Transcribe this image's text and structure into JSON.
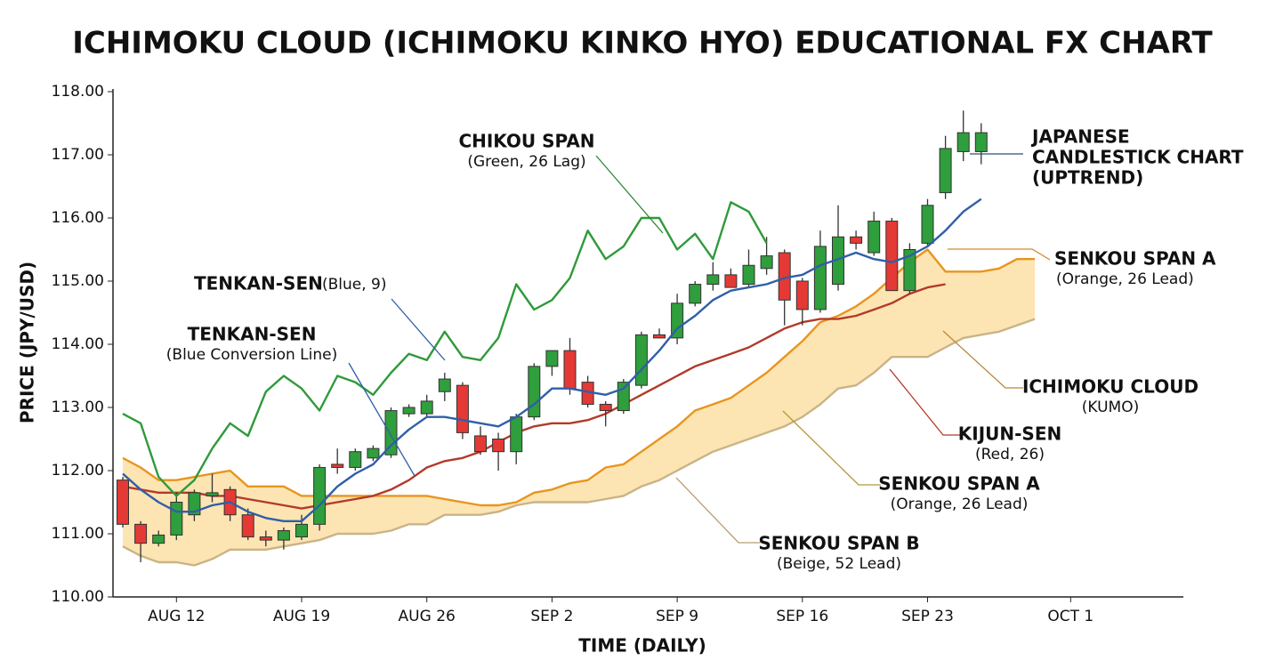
{
  "chart_data": {
    "type": "candlestick",
    "title": "ICHIMOKU CLOUD (ICHIMOKU KINKO HYO) EDUCATIONAL FX CHART",
    "x_label": "TIME (DAILY)",
    "y_label": "PRICE (JPY/USD)",
    "categories": [
      null,
      null,
      null,
      "AUG 12",
      null,
      null,
      null,
      null,
      null,
      null,
      "AUG 19",
      null,
      null,
      null,
      null,
      null,
      null,
      "AUG 26",
      null,
      null,
      null,
      null,
      null,
      null,
      "SEP 2",
      null,
      null,
      null,
      null,
      null,
      null,
      "SEP 9",
      null,
      null,
      null,
      null,
      null,
      null,
      "SEP 16",
      null,
      null,
      null,
      null,
      null,
      null,
      "SEP 23",
      null,
      null,
      null,
      null,
      null,
      null,
      null,
      "OCT 1",
      null,
      null,
      null,
      null,
      null,
      null
    ],
    "ylim": [
      110,
      118
    ],
    "yticks": [
      {
        "value": 110,
        "label": "110.00"
      },
      {
        "value": 111,
        "label": "111.00"
      },
      {
        "value": 112,
        "label": "112.00"
      },
      {
        "value": 113,
        "label": "113.00"
      },
      {
        "value": 114,
        "label": "114.00"
      },
      {
        "value": 115,
        "label": "115.00"
      },
      {
        "value": 116,
        "label": "116.00"
      },
      {
        "value": 117,
        "label": "117.00"
      },
      {
        "value": 118,
        "label": "118.00"
      }
    ],
    "up_color": "#2f9e3c",
    "down_color": "#e53935",
    "cloud_color": "#fde4b3",
    "candles": {
      "open": [
        111.85,
        111.15,
        110.85,
        110.98,
        111.3,
        111.6,
        111.7,
        111.3,
        110.95,
        110.9,
        110.95,
        111.15,
        112.1,
        112.05,
        112.2,
        112.25,
        112.9,
        112.9,
        113.25,
        113.35,
        112.55,
        112.5,
        112.3,
        112.85,
        113.65,
        113.9,
        113.4,
        113.05,
        112.95,
        113.35,
        114.15,
        114.1,
        114.65,
        114.95,
        115.1,
        114.95,
        115.2,
        115.45,
        115.0,
        114.55,
        114.95,
        115.7,
        115.45,
        115.95,
        114.85,
        115.6,
        116.4,
        117.05,
        117.05
      ],
      "high": [
        111.9,
        111.2,
        111.05,
        111.65,
        111.7,
        111.95,
        111.75,
        111.4,
        111.05,
        111.1,
        111.3,
        112.1,
        112.35,
        112.35,
        112.4,
        113.0,
        113.05,
        113.2,
        113.55,
        113.4,
        112.7,
        112.6,
        112.9,
        113.7,
        113.9,
        114.1,
        113.5,
        113.1,
        113.45,
        114.2,
        114.25,
        114.8,
        115.0,
        115.3,
        115.2,
        115.5,
        115.7,
        115.5,
        115.05,
        115.8,
        116.2,
        115.8,
        116.1,
        116.0,
        115.6,
        116.3,
        117.3,
        117.7,
        117.5
      ],
      "low": [
        111.1,
        110.55,
        110.8,
        110.9,
        111.2,
        111.5,
        111.2,
        110.9,
        110.8,
        110.75,
        110.9,
        111.05,
        111.95,
        112.0,
        112.15,
        112.2,
        112.85,
        112.85,
        113.1,
        112.5,
        112.25,
        112.0,
        112.1,
        112.8,
        113.5,
        113.2,
        113.0,
        112.7,
        112.9,
        113.3,
        114.1,
        114.0,
        114.6,
        114.85,
        114.9,
        114.9,
        115.1,
        114.3,
        114.3,
        114.5,
        114.85,
        115.5,
        115.4,
        114.85,
        114.8,
        115.55,
        116.3,
        116.9,
        116.85
      ],
      "close": [
        111.15,
        110.85,
        110.98,
        111.5,
        111.65,
        111.65,
        111.3,
        110.95,
        110.9,
        111.05,
        111.15,
        112.05,
        112.05,
        112.3,
        112.35,
        112.95,
        113.0,
        113.1,
        113.45,
        112.6,
        112.3,
        112.3,
        112.85,
        113.65,
        113.9,
        113.3,
        113.05,
        112.95,
        113.4,
        114.15,
        114.1,
        114.65,
        114.95,
        115.1,
        114.9,
        115.25,
        115.4,
        114.7,
        114.55,
        115.55,
        115.7,
        115.6,
        115.95,
        114.85,
        115.5,
        116.2,
        117.1,
        117.35,
        117.35
      ]
    },
    "series": [
      {
        "color": "#c9b487",
        "values": [
          110.8,
          110.65,
          110.55,
          110.55,
          110.5,
          110.6,
          110.75,
          110.75,
          110.75,
          110.8,
          110.85,
          110.9,
          111.0,
          111.0,
          111.0,
          111.05,
          111.15,
          111.15,
          111.3,
          111.3,
          111.3,
          111.35,
          111.45,
          111.5,
          111.5,
          111.5,
          111.5,
          111.55,
          111.6,
          111.75,
          111.85,
          112.0,
          112.15,
          112.3,
          112.4,
          112.5,
          112.6,
          112.7,
          112.85,
          113.05,
          113.3,
          113.35,
          113.55,
          113.8,
          113.8,
          113.8,
          113.95,
          114.1,
          114.15,
          114.2,
          114.3,
          114.4,
          null,
          null,
          null,
          null,
          null,
          null,
          null,
          null
        ]
      },
      {
        "color": "#e8951e",
        "values": [
          112.2,
          112.05,
          111.85,
          111.85,
          111.9,
          111.95,
          112.0,
          111.75,
          111.75,
          111.75,
          111.6,
          111.6,
          111.6,
          111.6,
          111.6,
          111.6,
          111.6,
          111.6,
          111.55,
          111.5,
          111.45,
          111.45,
          111.5,
          111.65,
          111.7,
          111.8,
          111.85,
          112.05,
          112.1,
          112.3,
          112.5,
          112.7,
          112.95,
          113.05,
          113.15,
          113.35,
          113.55,
          113.8,
          114.05,
          114.35,
          114.45,
          114.6,
          114.8,
          115.05,
          115.3,
          115.5,
          115.15,
          115.15,
          115.15,
          115.2,
          115.35,
          115.35,
          null,
          null,
          null,
          null,
          null,
          null,
          null,
          null
        ]
      },
      {
        "color": "#b23a2a",
        "values": [
          111.75,
          111.7,
          111.65,
          111.65,
          111.65,
          111.6,
          111.6,
          111.55,
          111.5,
          111.45,
          111.4,
          111.45,
          111.5,
          111.55,
          111.6,
          111.7,
          111.85,
          112.05,
          112.15,
          112.2,
          112.3,
          112.45,
          112.6,
          112.7,
          112.75,
          112.75,
          112.8,
          112.9,
          113.05,
          113.2,
          113.35,
          113.5,
          113.65,
          113.75,
          113.85,
          113.95,
          114.1,
          114.25,
          114.35,
          114.4,
          114.4,
          114.45,
          114.55,
          114.65,
          114.8,
          114.9,
          114.95,
          null,
          null,
          null,
          null,
          null,
          null,
          null,
          null,
          null,
          null,
          null,
          null,
          null
        ]
      },
      {
        "color": "#2f5fa8",
        "values": [
          111.95,
          111.7,
          111.5,
          111.35,
          111.35,
          111.45,
          111.5,
          111.35,
          111.25,
          111.2,
          111.2,
          111.45,
          111.75,
          111.95,
          112.1,
          112.4,
          112.65,
          112.85,
          112.85,
          112.8,
          112.75,
          112.7,
          112.85,
          113.05,
          113.3,
          113.3,
          113.25,
          113.2,
          113.3,
          113.6,
          113.9,
          114.25,
          114.45,
          114.7,
          114.85,
          114.9,
          114.95,
          115.05,
          115.1,
          115.25,
          115.35,
          115.45,
          115.35,
          115.3,
          115.4,
          115.55,
          115.8,
          116.1,
          116.3,
          null,
          null,
          null,
          null,
          null,
          null,
          null,
          null,
          null,
          null,
          null
        ]
      },
      {
        "color": "#2e9a3a",
        "values": [
          112.9,
          112.75,
          111.9,
          111.6,
          111.85,
          112.35,
          112.75,
          112.55,
          113.25,
          113.5,
          113.3,
          112.95,
          113.5,
          113.4,
          113.2,
          113.55,
          113.85,
          113.75,
          114.2,
          113.8,
          113.75,
          114.1,
          114.95,
          114.55,
          114.7,
          115.05,
          115.8,
          115.35,
          115.55,
          116.0,
          116.0,
          115.5,
          115.75,
          115.35,
          116.25,
          116.1,
          115.6,
          null,
          null,
          null,
          null,
          null,
          null,
          null,
          null,
          null,
          null,
          null,
          null,
          null,
          null,
          null,
          null,
          null,
          null,
          null,
          null,
          null,
          null,
          null
        ]
      }
    ],
    "annotations": [
      {
        "label": [
          "CHIKOU SPAN"
        ],
        "note": "(Green, 26 Lag)"
      },
      {
        "label": [
          "TENKAN-SEN"
        ],
        "note": "(Blue, 9)"
      },
      {
        "label": [
          "TENKAN-SEN"
        ],
        "note": "(Blue Conversion Line)"
      },
      {
        "label": [
          "JAPANESE",
          "CANDLESTICK CHART",
          "(UPTREND)"
        ]
      },
      {
        "label": [
          "SENKOU SPAN A"
        ],
        "note": "(Orange, 26 Lead)"
      },
      {
        "label": [
          "ICHIMOKU CLOUD"
        ],
        "note": "(KUMO)"
      },
      {
        "label": [
          "KIJUN-SEN"
        ],
        "note": "(Red, 26)"
      },
      {
        "label": [
          "SENKOU SPAN A"
        ],
        "note": "(Orange, 26 Lead)"
      },
      {
        "label": [
          "SENKOU SPAN B"
        ],
        "note": "(Beige, 52 Lead)"
      }
    ]
  }
}
